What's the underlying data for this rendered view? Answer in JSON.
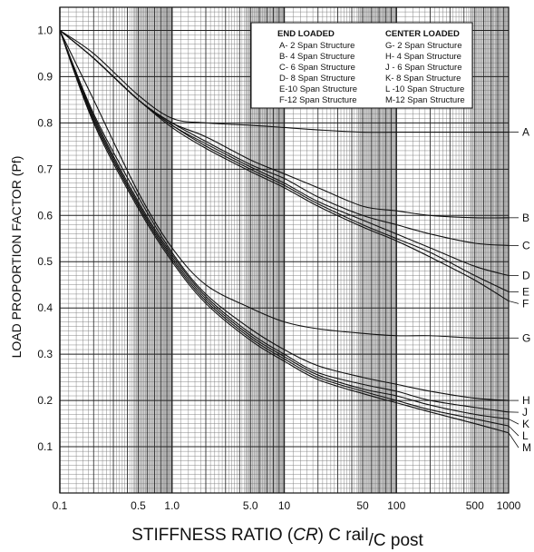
{
  "chart_data": {
    "type": "line",
    "x_scale": "log",
    "xlim": [
      0.1,
      1000
    ],
    "ylim": [
      0,
      1.05
    ],
    "grid": true,
    "legend_position": "top-right",
    "ylabel": "LOAD PROPORTION FACTOR (Pf)",
    "xlabel_parts": {
      "main": "STIFFNESS RATIO (",
      "italic": "CR",
      "close": ") C rail",
      "sub": "/C post"
    },
    "x_ticks": [
      {
        "label": "0.1",
        "value": 0.1
      },
      {
        "label": "0.5",
        "value": 0.5
      },
      {
        "label": "1.0",
        "value": 1.0
      },
      {
        "label": "5.0",
        "value": 5
      },
      {
        "label": "10",
        "value": 10
      },
      {
        "label": "50",
        "value": 50
      },
      {
        "label": "100",
        "value": 100
      },
      {
        "label": "500",
        "value": 500
      },
      {
        "label": "1000",
        "value": 1000
      }
    ],
    "y_ticks": [
      "0.1",
      "0.2",
      "0.3",
      "0.4",
      "0.5",
      "0.6",
      "0.7",
      "0.8",
      "0.9",
      "1.0"
    ],
    "legend": {
      "end_title": "END LOADED",
      "center_title": "CENTER LOADED",
      "end_items": [
        "A- 2 Span Structure",
        "B- 4 Span Structure",
        "C- 6 Span Structure",
        "D- 8 Span Structure",
        "E-10 Span Structure",
        "F-12 Span Structure"
      ],
      "center_items": [
        "G- 2 Span Structure",
        "H- 4 Span Structure",
        "J - 6 Span Structure",
        "K- 8 Span Structure",
        "L -10 Span Structure",
        "M-12 Span Structure"
      ]
    },
    "x": [
      0.1,
      0.2,
      0.5,
      1,
      2,
      5,
      10,
      20,
      50,
      100,
      200,
      500,
      1000
    ],
    "series": [
      {
        "name": "A",
        "values": [
          1.0,
          0.95,
          0.86,
          0.81,
          0.8,
          0.795,
          0.79,
          0.785,
          0.78,
          0.78,
          0.78,
          0.78,
          0.78
        ]
      },
      {
        "name": "B",
        "values": [
          1.0,
          0.94,
          0.85,
          0.8,
          0.77,
          0.72,
          0.69,
          0.66,
          0.62,
          0.61,
          0.6,
          0.595,
          0.595
        ]
      },
      {
        "name": "C",
        "values": [
          1.0,
          0.94,
          0.85,
          0.8,
          0.76,
          0.71,
          0.68,
          0.64,
          0.6,
          0.58,
          0.56,
          0.54,
          0.535
        ]
      },
      {
        "name": "D",
        "values": [
          1.0,
          0.94,
          0.85,
          0.795,
          0.755,
          0.705,
          0.67,
          0.63,
          0.59,
          0.56,
          0.53,
          0.49,
          0.47
        ]
      },
      {
        "name": "E",
        "values": [
          1.0,
          0.94,
          0.85,
          0.795,
          0.75,
          0.7,
          0.665,
          0.625,
          0.58,
          0.55,
          0.52,
          0.47,
          0.435
        ]
      },
      {
        "name": "F",
        "values": [
          1.0,
          0.94,
          0.85,
          0.79,
          0.745,
          0.695,
          0.66,
          0.62,
          0.575,
          0.545,
          0.51,
          0.46,
          0.415
        ]
      },
      {
        "name": "G",
        "values": [
          1.0,
          0.85,
          0.65,
          0.53,
          0.45,
          0.4,
          0.37,
          0.355,
          0.345,
          0.34,
          0.34,
          0.335,
          0.335
        ]
      },
      {
        "name": "H",
        "values": [
          1.0,
          0.82,
          0.64,
          0.52,
          0.43,
          0.355,
          0.31,
          0.275,
          0.25,
          0.235,
          0.22,
          0.205,
          0.2
        ]
      },
      {
        "name": "J",
        "values": [
          1.0,
          0.815,
          0.63,
          0.515,
          0.425,
          0.345,
          0.3,
          0.26,
          0.235,
          0.22,
          0.2,
          0.185,
          0.175
        ]
      },
      {
        "name": "K",
        "values": [
          1.0,
          0.81,
          0.625,
          0.51,
          0.42,
          0.34,
          0.295,
          0.255,
          0.225,
          0.21,
          0.19,
          0.17,
          0.16
        ]
      },
      {
        "name": "L",
        "values": [
          1.0,
          0.805,
          0.62,
          0.505,
          0.415,
          0.335,
          0.29,
          0.25,
          0.22,
          0.2,
          0.18,
          0.16,
          0.145
        ]
      },
      {
        "name": "M",
        "values": [
          1.0,
          0.8,
          0.615,
          0.5,
          0.41,
          0.33,
          0.285,
          0.245,
          0.215,
          0.195,
          0.175,
          0.15,
          0.13
        ]
      }
    ]
  }
}
